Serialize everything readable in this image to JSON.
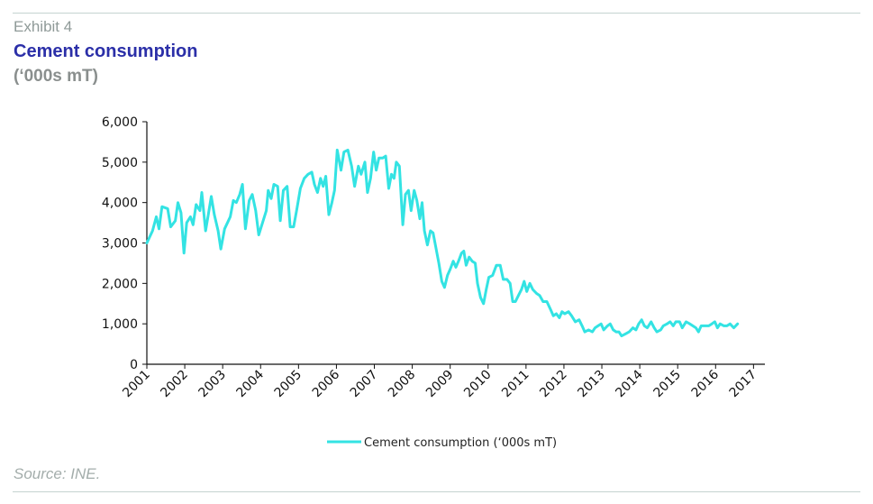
{
  "header": {
    "exhibit": "Exhibit 4",
    "title": "Cement consumption",
    "subtitle": "(‘000s mT)"
  },
  "footer": {
    "source": "Source: INE."
  },
  "colors": {
    "series": "#33e3e3",
    "title": "#2b2fa8",
    "axis": "#111111"
  },
  "chart_data": {
    "type": "line",
    "title": "Cement consumption",
    "ylim": [
      0,
      6000
    ],
    "yticks": [
      0,
      1000,
      2000,
      3000,
      4000,
      5000,
      6000
    ],
    "ytick_labels": [
      "0",
      "1,000",
      "2,000",
      "3,000",
      "4,000",
      "5,000",
      "6,000"
    ],
    "xlim": [
      2001,
      2017.3
    ],
    "xticks": [
      2001,
      2002,
      2003,
      2004,
      2005,
      2006,
      2007,
      2008,
      2009,
      2010,
      2011,
      2012,
      2013,
      2014,
      2015,
      2016,
      2017
    ],
    "xtick_labels": [
      "2001",
      "2002",
      "2003",
      "2004",
      "2005",
      "2006",
      "2007",
      "2008",
      "2009",
      "2010",
      "2011",
      "2012",
      "2013",
      "2014",
      "2015",
      "2016",
      "2017"
    ],
    "grid": false,
    "legend_position": "bottom",
    "series": [
      {
        "name": "Cement consumption (‘000s mT)",
        "points": [
          [
            2001.0,
            3000
          ],
          [
            2001.15,
            3300
          ],
          [
            2001.25,
            3650
          ],
          [
            2001.32,
            3350
          ],
          [
            2001.4,
            3900
          ],
          [
            2001.55,
            3850
          ],
          [
            2001.63,
            3400
          ],
          [
            2001.75,
            3550
          ],
          [
            2001.82,
            4000
          ],
          [
            2001.9,
            3750
          ],
          [
            2001.98,
            2750
          ],
          [
            2002.05,
            3500
          ],
          [
            2002.15,
            3650
          ],
          [
            2002.22,
            3450
          ],
          [
            2002.3,
            3950
          ],
          [
            2002.4,
            3800
          ],
          [
            2002.45,
            4250
          ],
          [
            2002.55,
            3300
          ],
          [
            2002.62,
            3700
          ],
          [
            2002.7,
            4150
          ],
          [
            2002.78,
            3700
          ],
          [
            2002.88,
            3300
          ],
          [
            2002.95,
            2850
          ],
          [
            2003.05,
            3350
          ],
          [
            2003.2,
            3650
          ],
          [
            2003.28,
            4050
          ],
          [
            2003.36,
            4000
          ],
          [
            2003.45,
            4200
          ],
          [
            2003.52,
            4450
          ],
          [
            2003.6,
            3350
          ],
          [
            2003.7,
            4050
          ],
          [
            2003.78,
            4200
          ],
          [
            2003.87,
            3800
          ],
          [
            2003.95,
            3200
          ],
          [
            2004.05,
            3500
          ],
          [
            2004.15,
            3800
          ],
          [
            2004.2,
            4300
          ],
          [
            2004.28,
            4100
          ],
          [
            2004.35,
            4450
          ],
          [
            2004.45,
            4400
          ],
          [
            2004.52,
            3550
          ],
          [
            2004.6,
            4300
          ],
          [
            2004.7,
            4400
          ],
          [
            2004.78,
            3400
          ],
          [
            2004.87,
            3400
          ],
          [
            2004.95,
            3800
          ],
          [
            2005.05,
            4350
          ],
          [
            2005.15,
            4600
          ],
          [
            2005.25,
            4700
          ],
          [
            2005.35,
            4750
          ],
          [
            2005.42,
            4450
          ],
          [
            2005.5,
            4250
          ],
          [
            2005.58,
            4600
          ],
          [
            2005.65,
            4400
          ],
          [
            2005.72,
            4650
          ],
          [
            2005.8,
            3700
          ],
          [
            2005.88,
            4000
          ],
          [
            2005.95,
            4300
          ],
          [
            2006.02,
            5300
          ],
          [
            2006.12,
            4800
          ],
          [
            2006.2,
            5250
          ],
          [
            2006.3,
            5300
          ],
          [
            2006.4,
            4900
          ],
          [
            2006.48,
            4400
          ],
          [
            2006.58,
            4900
          ],
          [
            2006.65,
            4700
          ],
          [
            2006.75,
            5000
          ],
          [
            2006.82,
            4250
          ],
          [
            2006.9,
            4600
          ],
          [
            2006.98,
            5250
          ],
          [
            2007.05,
            4800
          ],
          [
            2007.12,
            5100
          ],
          [
            2007.22,
            5100
          ],
          [
            2007.3,
            5150
          ],
          [
            2007.38,
            4350
          ],
          [
            2007.45,
            4700
          ],
          [
            2007.52,
            4600
          ],
          [
            2007.58,
            5000
          ],
          [
            2007.66,
            4900
          ],
          [
            2007.75,
            3450
          ],
          [
            2007.82,
            4200
          ],
          [
            2007.9,
            4300
          ],
          [
            2007.97,
            3800
          ],
          [
            2008.05,
            4300
          ],
          [
            2008.12,
            4050
          ],
          [
            2008.2,
            3600
          ],
          [
            2008.26,
            4000
          ],
          [
            2008.32,
            3300
          ],
          [
            2008.4,
            2950
          ],
          [
            2008.48,
            3300
          ],
          [
            2008.55,
            3250
          ],
          [
            2008.62,
            2900
          ],
          [
            2008.7,
            2500
          ],
          [
            2008.78,
            2050
          ],
          [
            2008.85,
            1900
          ],
          [
            2008.93,
            2200
          ],
          [
            2009.0,
            2350
          ],
          [
            2009.08,
            2550
          ],
          [
            2009.15,
            2400
          ],
          [
            2009.22,
            2550
          ],
          [
            2009.3,
            2750
          ],
          [
            2009.36,
            2800
          ],
          [
            2009.42,
            2450
          ],
          [
            2009.5,
            2650
          ],
          [
            2009.58,
            2550
          ],
          [
            2009.66,
            2500
          ],
          [
            2009.72,
            2000
          ],
          [
            2009.8,
            1650
          ],
          [
            2009.88,
            1500
          ],
          [
            2009.95,
            1850
          ],
          [
            2010.02,
            2150
          ],
          [
            2010.12,
            2200
          ],
          [
            2010.22,
            2450
          ],
          [
            2010.32,
            2450
          ],
          [
            2010.4,
            2100
          ],
          [
            2010.5,
            2100
          ],
          [
            2010.58,
            2000
          ],
          [
            2010.65,
            1550
          ],
          [
            2010.72,
            1550
          ],
          [
            2010.8,
            1700
          ],
          [
            2010.88,
            1850
          ],
          [
            2010.95,
            2050
          ],
          [
            2011.02,
            1800
          ],
          [
            2011.1,
            2000
          ],
          [
            2011.18,
            1850
          ],
          [
            2011.28,
            1750
          ],
          [
            2011.36,
            1700
          ],
          [
            2011.45,
            1550
          ],
          [
            2011.55,
            1550
          ],
          [
            2011.65,
            1350
          ],
          [
            2011.72,
            1200
          ],
          [
            2011.8,
            1250
          ],
          [
            2011.88,
            1150
          ],
          [
            2011.95,
            1300
          ],
          [
            2012.02,
            1250
          ],
          [
            2012.12,
            1300
          ],
          [
            2012.2,
            1200
          ],
          [
            2012.3,
            1050
          ],
          [
            2012.4,
            1100
          ],
          [
            2012.48,
            950
          ],
          [
            2012.55,
            800
          ],
          [
            2012.65,
            850
          ],
          [
            2012.75,
            800
          ],
          [
            2012.82,
            900
          ],
          [
            2012.9,
            950
          ],
          [
            2012.98,
            1000
          ],
          [
            2013.05,
            850
          ],
          [
            2013.15,
            950
          ],
          [
            2013.22,
            1000
          ],
          [
            2013.3,
            850
          ],
          [
            2013.38,
            800
          ],
          [
            2013.45,
            800
          ],
          [
            2013.52,
            700
          ],
          [
            2013.62,
            750
          ],
          [
            2013.72,
            800
          ],
          [
            2013.82,
            900
          ],
          [
            2013.9,
            850
          ],
          [
            2013.97,
            1000
          ],
          [
            2014.05,
            1100
          ],
          [
            2014.12,
            950
          ],
          [
            2014.2,
            900
          ],
          [
            2014.3,
            1050
          ],
          [
            2014.38,
            900
          ],
          [
            2014.45,
            800
          ],
          [
            2014.55,
            850
          ],
          [
            2014.62,
            950
          ],
          [
            2014.72,
            1000
          ],
          [
            2014.8,
            1050
          ],
          [
            2014.88,
            950
          ],
          [
            2014.95,
            1050
          ],
          [
            2015.05,
            1050
          ],
          [
            2015.12,
            900
          ],
          [
            2015.22,
            1050
          ],
          [
            2015.32,
            1000
          ],
          [
            2015.4,
            950
          ],
          [
            2015.48,
            900
          ],
          [
            2015.55,
            800
          ],
          [
            2015.62,
            950
          ],
          [
            2015.72,
            950
          ],
          [
            2015.82,
            950
          ],
          [
            2015.9,
            1000
          ],
          [
            2015.98,
            1050
          ],
          [
            2016.05,
            900
          ],
          [
            2016.12,
            1000
          ],
          [
            2016.22,
            950
          ],
          [
            2016.3,
            950
          ],
          [
            2016.38,
            1000
          ],
          [
            2016.48,
            900
          ],
          [
            2016.58,
            1000
          ]
        ]
      }
    ]
  }
}
